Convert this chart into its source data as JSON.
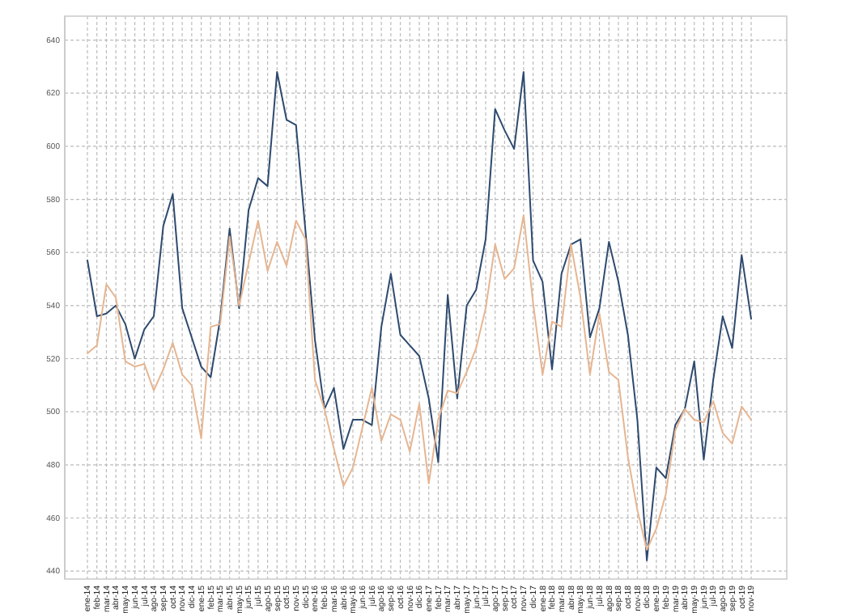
{
  "chart_data": {
    "type": "line",
    "categories": [
      "ene-14",
      "feb-14",
      "mar-14",
      "abr-14",
      "may-14",
      "jun-14",
      "jul-14",
      "ago-14",
      "sep-14",
      "oct-14",
      "nov-14",
      "dic-14",
      "ene-15",
      "feb-15",
      "mar-15",
      "abr-15",
      "may-15",
      "jun-15",
      "jul-15",
      "ago-15",
      "sep-15",
      "oct-15",
      "nov-15",
      "dic-15",
      "ene-16",
      "feb-16",
      "mar-16",
      "abr-16",
      "may-16",
      "jun-16",
      "jul-16",
      "ago-16",
      "sep-16",
      "oct-16",
      "nov-16",
      "dic-16",
      "ene-17",
      "feb-17",
      "mar-17",
      "abr-17",
      "may-17",
      "jun-17",
      "jul-17",
      "ago-17",
      "sep-17",
      "oct-17",
      "nov-17",
      "dic-17",
      "ene-18",
      "feb-18",
      "mar-18",
      "abr-18",
      "may-18",
      "jun-18",
      "jul-18",
      "ago-18",
      "sep-18",
      "oct-18",
      "nov-18",
      "dic-18",
      "ene-19",
      "feb-19",
      "mar-19",
      "abr-19",
      "may-19",
      "jun-19",
      "jul-19",
      "ago-19",
      "sep-19",
      "oct-19",
      "nov-19"
    ],
    "series": [
      {
        "color": "#2e4a6e",
        "values": [
          557,
          536,
          537,
          540,
          533,
          520,
          531,
          536,
          570,
          582,
          539,
          528,
          517,
          513,
          535,
          569,
          539,
          576,
          588,
          585,
          628,
          610,
          608,
          568,
          527,
          501,
          509,
          486,
          497,
          497,
          495,
          532,
          552,
          529,
          525,
          521,
          505,
          481,
          544,
          505,
          540,
          546,
          565,
          614,
          606,
          599,
          628,
          557,
          549,
          516,
          552,
          563,
          565,
          528,
          539,
          564,
          549,
          529,
          497,
          444,
          479,
          475,
          495,
          501,
          519,
          482,
          512,
          536,
          524,
          559,
          535
        ]
      },
      {
        "color": "#e6b591",
        "values": [
          522,
          525,
          548,
          543,
          519,
          517,
          518,
          508,
          516,
          526,
          514,
          510,
          490,
          532,
          533,
          566,
          540,
          556,
          572,
          553,
          564,
          555,
          572,
          565,
          512,
          501,
          486,
          472,
          479,
          494,
          509,
          489,
          499,
          497,
          485,
          503,
          473,
          497,
          508,
          507,
          515,
          524,
          539,
          563,
          550,
          554,
          574,
          541,
          514,
          534,
          532,
          563,
          543,
          514,
          537,
          515,
          512,
          483,
          463,
          448,
          456,
          469,
          493,
          501,
          497,
          496,
          504,
          492,
          488,
          502,
          497
        ]
      }
    ],
    "ylim": [
      437,
      649
    ],
    "yticks": [
      440,
      460,
      480,
      500,
      520,
      540,
      560,
      580,
      600,
      620,
      640
    ],
    "grid": true
  }
}
